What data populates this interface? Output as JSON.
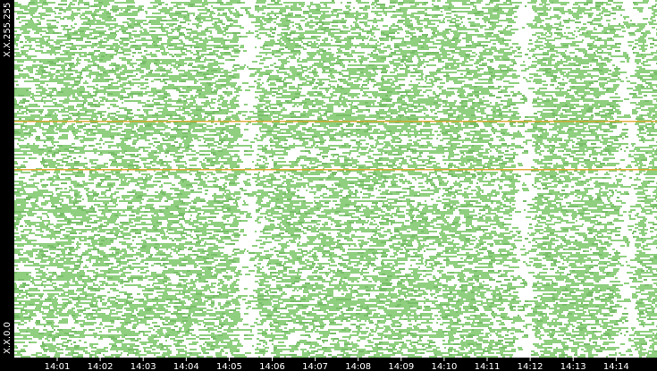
{
  "chart_data": {
    "type": "heatmap",
    "title": "",
    "xlabel": "",
    "ylabel": "",
    "y_range_labels": {
      "top": "X.X.255.255",
      "bottom": "X.X.0.0"
    },
    "x_ticks": [
      "14:01",
      "14:02",
      "14:03",
      "14:04",
      "14:05",
      "14:06",
      "14:07",
      "14:08",
      "14:09",
      "14:10",
      "14:11",
      "14:12",
      "14:13",
      "14:14"
    ],
    "colors": {
      "background": "#ffffff",
      "cell": "#8fcf7f",
      "cell_dark": "#79bd6a",
      "highlight": "#e0a020",
      "frame": "#000000",
      "text": "#ffffff"
    },
    "highlight_rows_fraction": [
      0.2,
      0.34
    ],
    "sparse_columns_fraction": [
      0.36,
      0.79,
      0.95
    ],
    "density": 0.62,
    "grid": false,
    "legend": "none"
  }
}
